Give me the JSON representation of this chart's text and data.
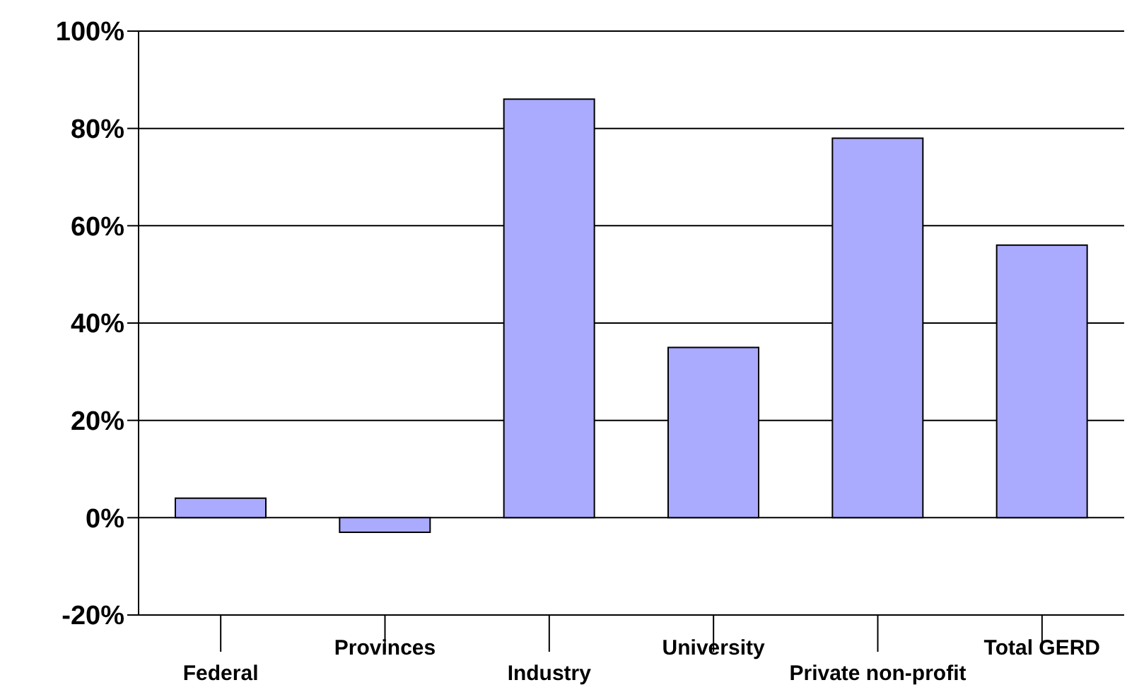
{
  "chart_data": {
    "type": "bar",
    "categories": [
      "Federal",
      "Provinces",
      "Industry",
      "University",
      "Private non-profit",
      "Total GERD"
    ],
    "values": [
      4,
      -3,
      86,
      35,
      78,
      56
    ],
    "color": "#aaaaff",
    "ylim": [
      -20,
      100
    ],
    "yticks": [
      {
        "value": -20,
        "label": "-20%"
      },
      {
        "value": 0,
        "label": "0%"
      },
      {
        "value": 20,
        "label": "20%"
      },
      {
        "value": 40,
        "label": "40%"
      },
      {
        "value": 60,
        "label": "60%"
      },
      {
        "value": 80,
        "label": "80%"
      },
      {
        "value": 100,
        "label": "100%"
      }
    ],
    "grid": "y",
    "legend": false
  }
}
